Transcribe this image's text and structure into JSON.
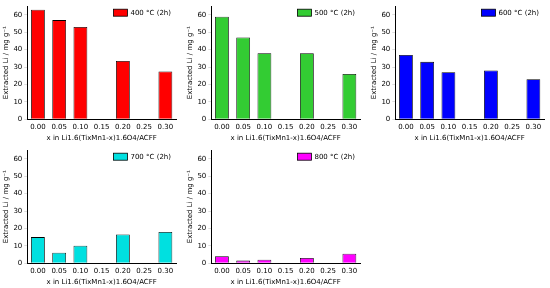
{
  "chart_data": [
    {
      "type": "bar",
      "x_label": "x in Li1.6(TixMn1-x)1.6O4/ACFF",
      "y_label": "Extracted Li / mg g⁻¹",
      "categories": [
        "0.00",
        "0.05",
        "0.10",
        "0.15",
        "0.20",
        "0.25",
        "0.30"
      ],
      "series": [
        {
          "name": "400 °C (2h)",
          "color": "#ff0000",
          "values": [
            63,
            57,
            53,
            null,
            33.5,
            null,
            27.5
          ]
        }
      ],
      "ylim": [
        0,
        65
      ],
      "yticks": [
        0,
        10,
        20,
        30,
        40,
        50,
        60
      ],
      "grid": false,
      "legend": "upper right"
    },
    {
      "type": "bar",
      "x_label": "x in Li1.6(TixMn1-x)1.6O4/ACFF",
      "y_label": "Extracted Li / mg g⁻¹",
      "categories": [
        "0.00",
        "0.05",
        "0.10",
        "0.15",
        "0.20",
        "0.25",
        "0.30"
      ],
      "series": [
        {
          "name": "500 °C (2h)",
          "color": "#33cc33",
          "values": [
            59,
            47,
            38,
            null,
            38,
            null,
            26
          ]
        }
      ],
      "ylim": [
        0,
        65
      ],
      "yticks": [
        0,
        10,
        20,
        30,
        40,
        50,
        60
      ],
      "grid": false,
      "legend": "upper right"
    },
    {
      "type": "bar",
      "x_label": "x in Li1.6(TixMn1-x)1.6O4/ACFF",
      "y_label": "Extracted Li / mg g⁻¹",
      "categories": [
        "0.00",
        "0.05",
        "0.10",
        "0.15",
        "0.20",
        "0.25",
        "0.30"
      ],
      "series": [
        {
          "name": "600 °C (2h)",
          "color": "#0000ff",
          "values": [
            37,
            33,
            27,
            null,
            28,
            null,
            23
          ]
        }
      ],
      "ylim": [
        0,
        65
      ],
      "yticks": [
        0,
        10,
        20,
        30,
        40,
        50,
        60
      ],
      "grid": false,
      "legend": "upper right"
    },
    {
      "type": "bar",
      "x_label": "x in Li1.6(TixMn1-x)1.6O4/ACFF",
      "y_label": "Extracted Li / mg g⁻¹",
      "categories": [
        "0.00",
        "0.05",
        "0.10",
        "0.15",
        "0.20",
        "0.25",
        "0.30"
      ],
      "series": [
        {
          "name": "700 °C (2h)",
          "color": "#00e0e0",
          "values": [
            15,
            6,
            10,
            null,
            16.5,
            null,
            18
          ]
        }
      ],
      "ylim": [
        0,
        65
      ],
      "yticks": [
        0,
        10,
        20,
        30,
        40,
        50,
        60
      ],
      "grid": false,
      "legend": "upper right"
    },
    {
      "type": "bar",
      "x_label": "x in Li1.6(TixMn1-x)1.6O4/ACFF",
      "y_label": "Extracted Li / mg g⁻¹",
      "categories": [
        "0.00",
        "0.05",
        "0.10",
        "0.15",
        "0.20",
        "0.25",
        "0.30"
      ],
      "series": [
        {
          "name": "800 °C (2h)",
          "color": "#ff00ff",
          "values": [
            4,
            1.5,
            2,
            null,
            3,
            null,
            5.5
          ]
        }
      ],
      "ylim": [
        0,
        65
      ],
      "yticks": [
        0,
        10,
        20,
        30,
        40,
        50,
        60
      ],
      "grid": false,
      "legend": "upper right"
    }
  ]
}
